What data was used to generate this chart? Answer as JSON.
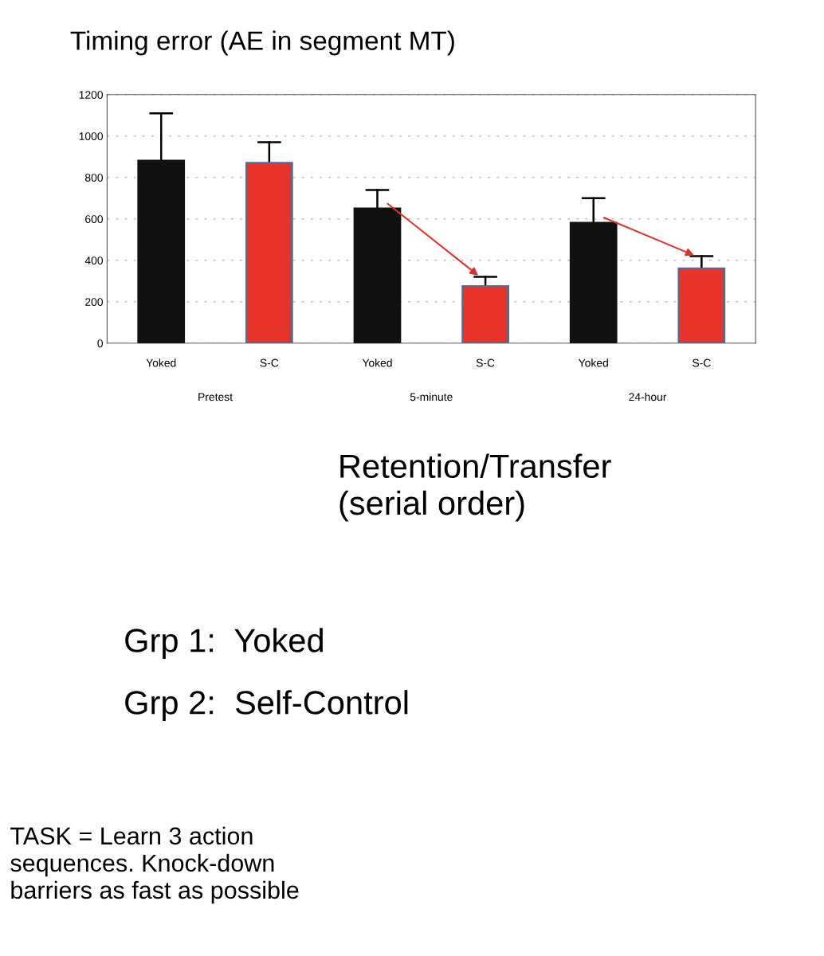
{
  "chart_data": {
    "type": "bar",
    "title": "Timing error (AE in segment MT)",
    "categories": [
      "Yoked",
      "S-C",
      "Yoked",
      "S-C",
      "Yoked",
      "S-C"
    ],
    "values": [
      880,
      870,
      650,
      275,
      580,
      360
    ],
    "colors": [
      "#111111",
      "#e8332a",
      "#111111",
      "#e8332a",
      "#111111",
      "#e8332a"
    ],
    "errors": [
      [
        880,
        1110
      ],
      [
        870,
        970
      ],
      [
        650,
        740
      ],
      [
        275,
        320
      ],
      [
        580,
        700
      ],
      [
        360,
        420
      ]
    ],
    "ylim": [
      0,
      1200
    ],
    "yticks": [
      0,
      200,
      400,
      600,
      800,
      1000,
      1200
    ],
    "grid": "y",
    "annotations": [
      "Pretest",
      "5-minute",
      "24-hour",
      "Retention/Transfer\n(serial order)",
      "Grp 1:  Yoked",
      "Grp 2:  Self-Control",
      "TASK = Learn 3 action\nsequences. Knock-down\nbarriers as fast as possible"
    ]
  }
}
